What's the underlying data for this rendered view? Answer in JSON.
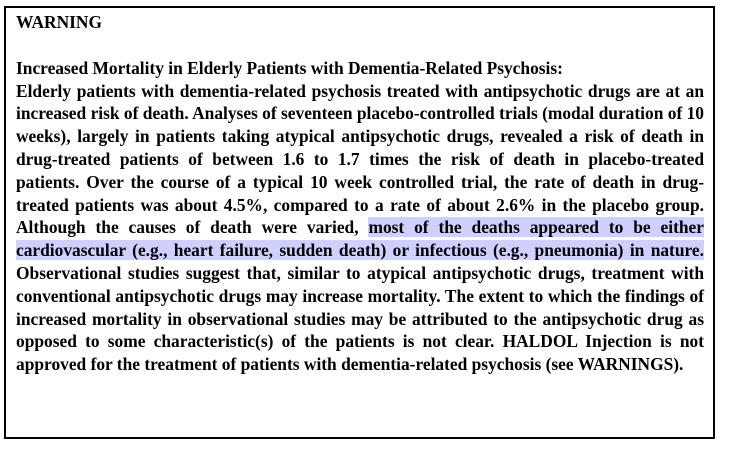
{
  "warning": {
    "title": "WARNING",
    "subtitle": "Increased Mortality in Elderly Patients with Dementia-Related Psychosis:",
    "body_before_highlight": "Elderly patients with dementia-related psychosis treated with antipsychotic drugs are at an increased risk of death. Analyses of seventeen placebo-controlled trials (modal duration of 10 weeks), largely in patients taking atypical antipsychotic drugs, revealed a risk of death in drug-treated patients of between 1.6 to 1.7 times the risk of death in placebo-treated patients. Over the course of a typical 10 week controlled trial, the rate of death in drug-treated patients was about 4.5%, compared to a rate of about 2.6% in the placebo group. Although the causes of death were varied, ",
    "body_highlight": "most of the deaths appeared to be either cardiovascular (e.g., heart failure, sudden death) or infectious (e.g., pneumonia) in nature.",
    "body_after_highlight": " Observational studies suggest that, similar to atypical antipsychotic drugs, treatment with conventional antipsychotic drugs may increase mortality. The extent to which the findings of increased mortality in observational studies may be attributed to the antipsychotic drug as opposed to some characteristic(s) of the patients is not clear. HALDOL Injection is not approved for the treatment of patients with dementia-related psychosis (see WARNINGS).",
    "highlight_color": "#cfd0ff",
    "border_color": "#000000"
  }
}
